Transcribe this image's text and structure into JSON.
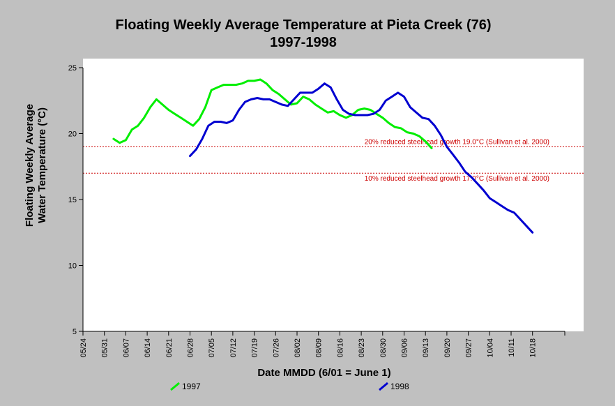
{
  "chart_data": {
    "type": "line",
    "title": "Floating Weekly Average Temperature at Pieta Creek (76)",
    "subtitle": "1997-1998",
    "xlabel": "Date MMDD (6/01 = June 1)",
    "ylabel": [
      "Floating Weekly Average",
      "Water Temperature (°C)"
    ],
    "x_tick_labels": [
      "05/24",
      "05/31",
      "06/07",
      "06/14",
      "06/21",
      "06/28",
      "07/05",
      "07/12",
      "07/19",
      "07/26",
      "08/02",
      "08/09",
      "08/16",
      "08/23",
      "08/30",
      "09/06",
      "09/13",
      "09/20",
      "09/27",
      "10/04",
      "10/11",
      "10/18"
    ],
    "ylim": [
      5,
      25
    ],
    "y_ticks": [
      5,
      10,
      15,
      20,
      25
    ],
    "grid": false,
    "legend_position": "bottom",
    "colors": {
      "background": "#c0c0c0",
      "plot_bg": "#ffffff",
      "ref_line": "#cc0000",
      "axis": "#000000"
    },
    "reference_lines": [
      {
        "y": 19.0,
        "label": "20% reduced steelhead growth 19.0°C (Sullivan et al. 2000)"
      },
      {
        "y": 17.0,
        "label": "10% reduced steelhead growth 17.0°C (Sullivan et al. 2000)"
      }
    ],
    "series": [
      {
        "name": "1997",
        "color": "#00ee00",
        "x": [
          "06/03",
          "06/05",
          "06/07",
          "06/09",
          "06/11",
          "06/13",
          "06/15",
          "06/17",
          "06/19",
          "06/21",
          "06/23",
          "06/25",
          "06/27",
          "06/29",
          "07/01",
          "07/03",
          "07/05",
          "07/07",
          "07/09",
          "07/11",
          "07/13",
          "07/15",
          "07/17",
          "07/19",
          "07/21",
          "07/23",
          "07/25",
          "07/27",
          "07/29",
          "07/31",
          "08/02",
          "08/04",
          "08/06",
          "08/08",
          "08/10",
          "08/12",
          "08/14",
          "08/16",
          "08/18",
          "08/20",
          "08/22",
          "08/24",
          "08/26",
          "08/28",
          "08/30",
          "09/01",
          "09/03",
          "09/05",
          "09/07",
          "09/09",
          "09/11",
          "09/13",
          "09/15"
        ],
        "values": [
          19.6,
          19.3,
          19.5,
          20.3,
          20.6,
          21.2,
          22.0,
          22.6,
          22.2,
          21.8,
          21.5,
          21.2,
          20.9,
          20.6,
          21.1,
          22.0,
          23.3,
          23.5,
          23.7,
          23.7,
          23.7,
          23.8,
          24.0,
          24.0,
          24.1,
          23.8,
          23.3,
          23.0,
          22.6,
          22.2,
          22.3,
          22.8,
          22.6,
          22.2,
          21.9,
          21.6,
          21.7,
          21.4,
          21.2,
          21.4,
          21.8,
          21.9,
          21.8,
          21.5,
          21.2,
          20.8,
          20.5,
          20.4,
          20.1,
          20.0,
          19.8,
          19.4,
          18.9
        ]
      },
      {
        "name": "1998",
        "color": "#0000d0",
        "x": [
          "06/28",
          "06/30",
          "07/02",
          "07/04",
          "07/06",
          "07/08",
          "07/10",
          "07/12",
          "07/14",
          "07/16",
          "07/18",
          "07/20",
          "07/22",
          "07/24",
          "07/26",
          "07/28",
          "07/30",
          "08/01",
          "08/03",
          "08/05",
          "08/07",
          "08/09",
          "08/11",
          "08/13",
          "08/15",
          "08/17",
          "08/19",
          "08/21",
          "08/23",
          "08/25",
          "08/27",
          "08/29",
          "08/31",
          "09/02",
          "09/04",
          "09/06",
          "09/08",
          "09/10",
          "09/12",
          "09/14",
          "09/16",
          "09/18",
          "09/20",
          "09/22",
          "09/24",
          "09/26",
          "09/28",
          "09/30",
          "10/02",
          "10/04",
          "10/06",
          "10/08",
          "10/10",
          "10/12",
          "10/14",
          "10/16",
          "10/18"
        ],
        "values": [
          18.3,
          18.8,
          19.6,
          20.6,
          20.9,
          20.9,
          20.8,
          21.0,
          21.8,
          22.4,
          22.6,
          22.7,
          22.6,
          22.6,
          22.4,
          22.2,
          22.1,
          22.6,
          23.1,
          23.1,
          23.1,
          23.4,
          23.8,
          23.5,
          22.6,
          21.8,
          21.5,
          21.4,
          21.4,
          21.4,
          21.5,
          21.8,
          22.5,
          22.8,
          23.1,
          22.8,
          22.0,
          21.6,
          21.2,
          21.1,
          20.6,
          19.9,
          19.0,
          18.4,
          17.8,
          17.1,
          16.7,
          16.2,
          15.7,
          15.1,
          14.8,
          14.5,
          14.2,
          14.0,
          13.5,
          13.0,
          12.5
        ]
      }
    ]
  }
}
